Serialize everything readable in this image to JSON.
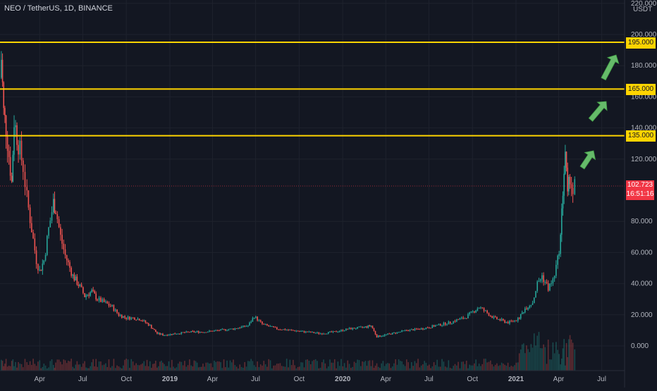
{
  "header": {
    "symbol": "NEO / TetherUS, 1D, BINANCE"
  },
  "price_axis": {
    "unit": "USDT"
  },
  "tags": {
    "level_195": "195.000",
    "level_165": "165.000",
    "level_135": "135.000",
    "last_price": "102.723",
    "countdown": "16:51:16"
  },
  "colors": {
    "background": "#131722",
    "up": "#26a69a",
    "down": "#ef5350",
    "level": "#ffd400",
    "arrow": "#66bb6a",
    "last": "#f23645"
  },
  "chart_data": {
    "type": "candlestick",
    "title": "NEO / TetherUS, 1D, BINANCE",
    "y_axis": {
      "ticks": [
        0,
        20,
        40,
        60,
        80,
        120,
        140,
        160,
        180,
        200,
        220
      ],
      "tick_labels": [
        "0.000",
        "20.000",
        "40.000",
        "60.000",
        "80.000",
        "120.000",
        "140.000",
        "160.000",
        "180.000",
        "200.000",
        "220.000"
      ],
      "ylim": [
        -5,
        222
      ]
    },
    "x_axis": {
      "tick_labels": [
        "Apr",
        "Jul",
        "Oct",
        "2019",
        "Apr",
        "Jul",
        "Oct",
        "2020",
        "Apr",
        "Jul",
        "Oct",
        "2021",
        "Apr",
        "Jul"
      ]
    },
    "grid": true,
    "horizontal_levels": [
      195,
      165,
      135
    ],
    "last_price": 102.723,
    "price_series": {
      "dates": [
        "2018-01-02",
        "2018-01-10",
        "2018-01-15",
        "2018-01-20",
        "2018-02-01",
        "2018-02-06",
        "2018-02-15",
        "2018-02-25",
        "2018-03-05",
        "2018-03-15",
        "2018-03-25",
        "2018-04-01",
        "2018-04-10",
        "2018-04-20",
        "2018-04-30",
        "2018-05-05",
        "2018-05-15",
        "2018-05-25",
        "2018-06-10",
        "2018-06-25",
        "2018-07-05",
        "2018-07-20",
        "2018-08-01",
        "2018-08-15",
        "2018-09-01",
        "2018-09-15",
        "2018-10-01",
        "2018-10-15",
        "2018-11-01",
        "2018-11-20",
        "2018-12-05",
        "2018-12-20",
        "2019-01-15",
        "2019-02-15",
        "2019-03-15",
        "2019-04-15",
        "2019-05-15",
        "2019-06-15",
        "2019-06-28",
        "2019-07-15",
        "2019-08-15",
        "2019-09-15",
        "2019-10-15",
        "2019-11-15",
        "2019-12-15",
        "2020-01-15",
        "2020-02-15",
        "2020-03-01",
        "2020-03-13",
        "2020-04-15",
        "2020-05-15",
        "2020-06-15",
        "2020-07-15",
        "2020-08-15",
        "2020-09-01",
        "2020-09-15",
        "2020-10-15",
        "2020-11-15",
        "2020-12-15",
        "2021-01-05",
        "2021-01-20",
        "2021-02-05",
        "2021-02-15",
        "2021-02-25",
        "2021-03-10",
        "2021-03-20",
        "2021-03-30",
        "2021-04-05",
        "2021-04-10",
        "2021-04-15",
        "2021-04-20",
        "2021-04-25",
        "2021-05-01",
        "2021-05-05"
      ],
      "close": [
        160,
        185,
        150,
        140,
        105,
        145,
        130,
        115,
        95,
        75,
        55,
        48,
        55,
        75,
        92,
        88,
        70,
        58,
        45,
        38,
        32,
        35,
        30,
        28,
        25,
        20,
        18,
        18,
        17,
        13,
        8,
        7,
        8,
        9,
        9,
        10,
        11,
        13,
        19,
        14,
        11,
        10,
        9,
        8,
        9,
        11,
        12,
        13,
        6,
        8,
        10,
        11,
        13,
        15,
        17,
        18,
        25,
        18,
        15,
        17,
        24,
        28,
        40,
        45,
        37,
        42,
        55,
        70,
        100,
        125,
        95,
        110,
        98,
        102.723
      ]
    },
    "volume": "low-level volume bars along the bottom"
  }
}
